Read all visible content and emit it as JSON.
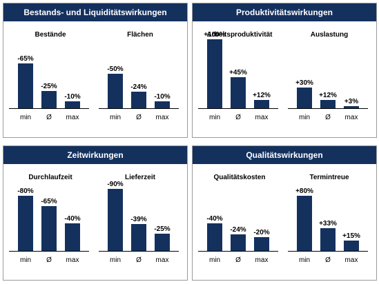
{
  "colors": {
    "header_bg": "#14315e",
    "bar": "#14315e",
    "border": "#9a9a9a"
  },
  "panels": [
    {
      "title": "Bestands- und Liquiditätswirkungen"
    },
    {
      "title": "Produktivitätswirkungen"
    },
    {
      "title": "Zeitwirkungen"
    },
    {
      "title": "Qualitätswirkungen"
    }
  ],
  "chart_data": [
    {
      "type": "bar",
      "title": "Bestände",
      "categories": [
        "min",
        "Ø",
        "max"
      ],
      "values": [
        -65,
        -25,
        -10
      ],
      "value_labels": [
        "-65%",
        "-25%",
        "-10%"
      ],
      "xlabel": "",
      "ylabel": ""
    },
    {
      "type": "bar",
      "title": "Flächen",
      "categories": [
        "min",
        "Ø",
        "max"
      ],
      "values": [
        -50,
        -24,
        -10
      ],
      "value_labels": [
        "-50%",
        "-24%",
        "-10%"
      ],
      "xlabel": "",
      "ylabel": ""
    },
    {
      "type": "bar",
      "title": "Arbeitsproduktivität",
      "categories": [
        "min",
        "Ø",
        "max"
      ],
      "values": [
        100,
        45,
        12
      ],
      "value_labels": [
        "+100%",
        "+45%",
        "+12%"
      ],
      "xlabel": "",
      "ylabel": ""
    },
    {
      "type": "bar",
      "title": "Auslastung",
      "categories": [
        "min",
        "Ø",
        "max"
      ],
      "values": [
        30,
        12,
        3
      ],
      "value_labels": [
        "+30%",
        "+12%",
        "+3%"
      ],
      "xlabel": "",
      "ylabel": ""
    },
    {
      "type": "bar",
      "title": "Durchlaufzeit",
      "categories": [
        "min",
        "Ø",
        "max"
      ],
      "values": [
        -80,
        -65,
        -40
      ],
      "value_labels": [
        "-80%",
        "-65%",
        "-40%"
      ],
      "xlabel": "",
      "ylabel": ""
    },
    {
      "type": "bar",
      "title": "Lieferzeit",
      "categories": [
        "min",
        "Ø",
        "max"
      ],
      "values": [
        -90,
        -39,
        -25
      ],
      "value_labels": [
        "-90%",
        "-39%",
        "-25%"
      ],
      "xlabel": "",
      "ylabel": ""
    },
    {
      "type": "bar",
      "title": "Qualitätskosten",
      "categories": [
        "min",
        "Ø",
        "max"
      ],
      "values": [
        -40,
        -24,
        -20
      ],
      "value_labels": [
        "-40%",
        "-24%",
        "-20%"
      ],
      "xlabel": "",
      "ylabel": ""
    },
    {
      "type": "bar",
      "title": "Termintreue",
      "categories": [
        "min",
        "Ø",
        "max"
      ],
      "values": [
        80,
        33,
        15
      ],
      "value_labels": [
        "+80%",
        "+33%",
        "+15%"
      ],
      "xlabel": "",
      "ylabel": ""
    }
  ]
}
